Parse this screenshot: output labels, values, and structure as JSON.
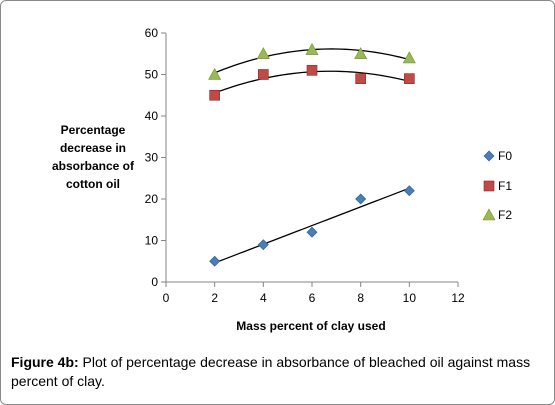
{
  "chart_data": {
    "type": "scatter",
    "xlabel": "Mass percent of clay used",
    "ylabel_lines": [
      "Percentage",
      "decrease in",
      "absorbance of",
      "cotton oil"
    ],
    "xlim": [
      0,
      12
    ],
    "ylim": [
      0,
      60
    ],
    "xticks": [
      "0",
      "2",
      "4",
      "6",
      "8",
      "10",
      "12"
    ],
    "yticks": [
      "0",
      "10",
      "20",
      "30",
      "40",
      "50",
      "60"
    ],
    "legend_position": "right",
    "grid": false,
    "series": [
      {
        "name": "F0",
        "marker": "diamond",
        "color": "#4a7ebb",
        "trendline": "linear",
        "x": [
          2,
          4,
          6,
          8,
          10
        ],
        "y": [
          5,
          9,
          12,
          20,
          22
        ]
      },
      {
        "name": "F1",
        "marker": "square",
        "color": "#be4b48",
        "trendline": "polynomial",
        "x": [
          2,
          4,
          6,
          8,
          10
        ],
        "y": [
          45,
          50,
          51,
          49,
          49
        ]
      },
      {
        "name": "F2",
        "marker": "triangle",
        "color": "#98b954",
        "trendline": "polynomial",
        "x": [
          2,
          4,
          6,
          8,
          10
        ],
        "y": [
          50,
          55,
          56,
          55,
          54
        ]
      }
    ]
  },
  "caption": {
    "label": "Figure 4b:",
    "text": " Plot of percentage decrease in absorbance of bleached oil against mass percent of clay."
  }
}
